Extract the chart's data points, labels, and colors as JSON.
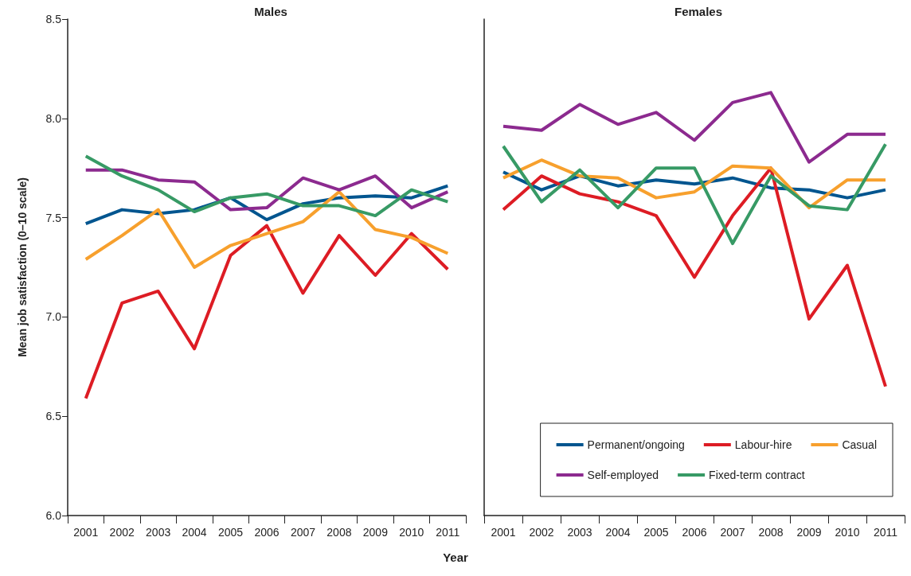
{
  "chart_data": [
    {
      "type": "line",
      "title": "Males",
      "xlabel": "Year",
      "ylabel": "Mean job satisfaction (0–10 scale)",
      "categories": [
        "2001",
        "2002",
        "2003",
        "2004",
        "2005",
        "2006",
        "2007",
        "2008",
        "2009",
        "2010",
        "2011"
      ],
      "ylim": [
        6,
        8.5
      ],
      "yticks": [
        {
          "value": 6,
          "label": "6.0"
        },
        {
          "value": 6.5,
          "label": "6.5"
        },
        {
          "value": 7,
          "label": "7.0"
        },
        {
          "value": 7.5,
          "label": "7.5"
        },
        {
          "value": 8,
          "label": "8.0"
        },
        {
          "value": 8.5,
          "label": "8.5"
        }
      ],
      "grid": false,
      "legend": false,
      "marker": "none",
      "line_style": "solid",
      "series": [
        {
          "color": "#00558f",
          "values": [
            7.47,
            7.54,
            7.52,
            7.54,
            7.6,
            7.49,
            7.57,
            7.6,
            7.61,
            7.6,
            7.66
          ]
        },
        {
          "color": "#dd1c24",
          "values": [
            6.59,
            7.07,
            7.13,
            6.84,
            7.31,
            7.46,
            7.12,
            7.41,
            7.21,
            7.42,
            7.24
          ]
        },
        {
          "color": "#f7a02d",
          "values": [
            7.29,
            7.41,
            7.54,
            7.25,
            7.36,
            7.42,
            7.48,
            7.63,
            7.44,
            7.4,
            7.32
          ]
        },
        {
          "color": "#8c2a8f",
          "values": [
            7.74,
            7.74,
            7.69,
            7.68,
            7.54,
            7.55,
            7.7,
            7.64,
            7.71,
            7.55,
            7.63
          ]
        },
        {
          "color": "#379a65",
          "values": [
            7.81,
            7.71,
            7.64,
            7.53,
            7.6,
            7.62,
            7.56,
            7.56,
            7.51,
            7.64,
            7.58
          ]
        }
      ]
    },
    {
      "type": "line",
      "title": "Females",
      "categories": [
        "2001",
        "2002",
        "2003",
        "2004",
        "2005",
        "2006",
        "2007",
        "2008",
        "2009",
        "2010",
        "2011"
      ],
      "ylim": [
        6,
        8.5
      ],
      "tick_labels": "x",
      "grid": false,
      "legend": "bottom right",
      "marker": "none",
      "line_style": "solid",
      "series": [
        {
          "name": "Permanent/ongoing",
          "color": "#00558f",
          "values": [
            7.73,
            7.64,
            7.71,
            7.66,
            7.69,
            7.67,
            7.7,
            7.65,
            7.64,
            7.6,
            7.64
          ]
        },
        {
          "name": "Labour-hire",
          "color": "#dd1c24",
          "values": [
            7.54,
            7.71,
            7.62,
            7.58,
            7.51,
            7.2,
            7.51,
            7.75,
            6.99,
            7.26,
            6.65
          ]
        },
        {
          "name": "Casual",
          "color": "#f7a02d",
          "values": [
            7.7,
            7.79,
            7.71,
            7.7,
            7.6,
            7.63,
            7.76,
            7.75,
            7.55,
            7.69,
            7.69
          ]
        },
        {
          "name": "Self-employed",
          "color": "#8c2a8f",
          "values": [
            7.96,
            7.94,
            8.07,
            7.97,
            8.03,
            7.89,
            8.08,
            8.13,
            7.78,
            7.92,
            7.92
          ]
        },
        {
          "name": "Fixed-term contract",
          "color": "#379a65",
          "values": [
            7.86,
            7.58,
            7.74,
            7.55,
            7.75,
            7.75,
            7.37,
            7.71,
            7.56,
            7.54,
            7.87
          ]
        }
      ]
    }
  ]
}
